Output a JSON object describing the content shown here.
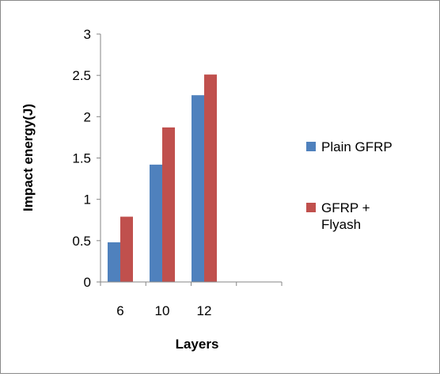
{
  "chart_data": {
    "type": "bar",
    "categories": [
      "6",
      "10",
      "12"
    ],
    "series": [
      {
        "name": "Plain GFRP",
        "values": [
          0.48,
          1.42,
          2.26
        ],
        "color": "#4F81BD"
      },
      {
        "name": "GFRP + Flyash",
        "name_lines": [
          " GFRP +",
          "Flyash"
        ],
        "values": [
          0.79,
          1.87,
          2.51
        ],
        "color": "#C0504D"
      }
    ],
    "title": "",
    "xlabel": "Layers",
    "ylabel": "Impact energy(J)",
    "ylim": [
      0,
      3
    ],
    "yticks": [
      "0",
      "0.5",
      "1",
      "1.5",
      "2",
      "2.5",
      "3"
    ],
    "grid": false,
    "legend": "right"
  }
}
